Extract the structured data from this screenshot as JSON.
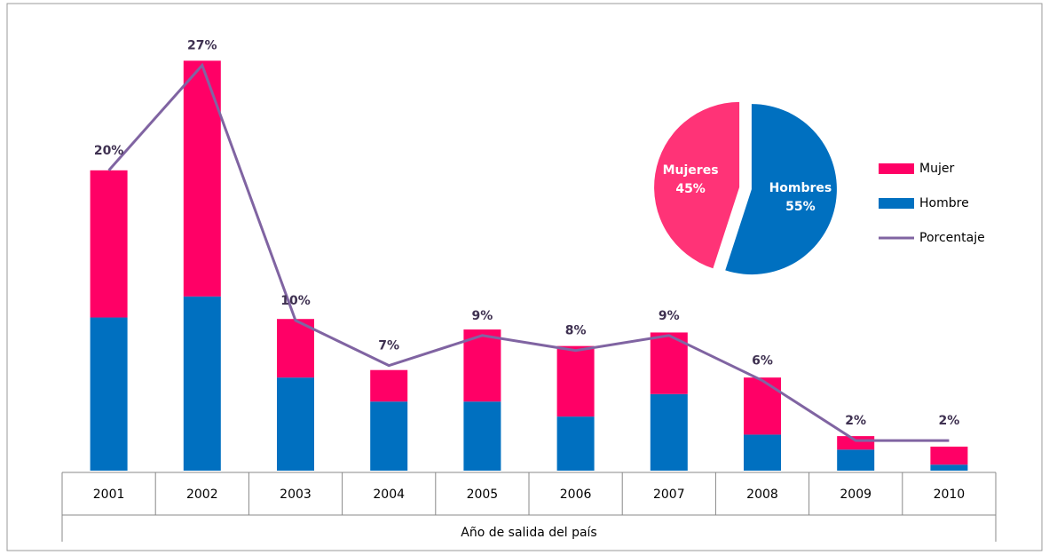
{
  "chart_data": [
    {
      "type": "bar",
      "stacked": true,
      "xlabel": "Año de salida del país",
      "categories": [
        "2001",
        "2002",
        "2003",
        "2004",
        "2005",
        "2006",
        "2007",
        "2008",
        "2009",
        "2010"
      ],
      "ylim": [
        0,
        27.5
      ],
      "legend": "right",
      "series": [
        {
          "name": "Mujer",
          "color": "#ff0066",
          "values": [
            9.8,
            15.7,
            3.9,
            2.1,
            4.8,
            4.7,
            4.1,
            3.8,
            0.9,
            1.2
          ]
        },
        {
          "name": "Hombre",
          "color": "#0070c0",
          "values": [
            10.2,
            11.6,
            6.2,
            4.6,
            4.6,
            3.6,
            5.1,
            2.4,
            1.4,
            0.4
          ]
        },
        {
          "name": "Porcentaje",
          "type": "line",
          "color": "#8064a2",
          "values": [
            20,
            27,
            10,
            7,
            9,
            8,
            9,
            6,
            2,
            2
          ],
          "value_labels": [
            "20%",
            "27%",
            "10%",
            "7%",
            "9%",
            "8%",
            "9%",
            "6%",
            "2%",
            "2%"
          ]
        }
      ]
    },
    {
      "type": "pie",
      "categories": [
        "Mujeres",
        "Hombres"
      ],
      "values": [
        45,
        55
      ],
      "value_labels": [
        "45%",
        "55%"
      ],
      "colors": [
        "#ff3377",
        "#0070c0"
      ]
    }
  ]
}
